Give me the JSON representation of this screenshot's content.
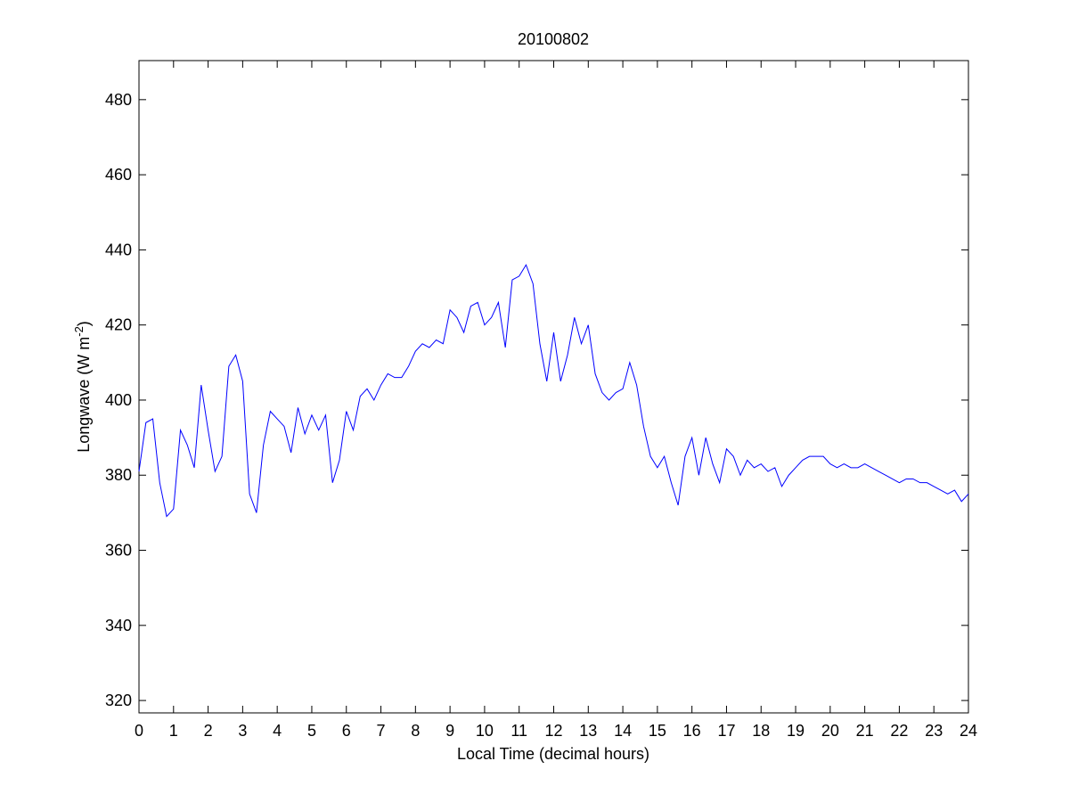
{
  "chart_data": {
    "type": "line",
    "title": "20100802",
    "x_label": "Local Time (decimal hours)",
    "y_label": [
      "Longwave (W m",
      "-2",
      ")"
    ],
    "x": [
      0,
      0.2,
      0.4,
      0.6,
      0.8,
      1,
      1.2,
      1.4,
      1.6,
      1.8,
      2,
      2.2,
      2.4,
      2.6,
      2.8,
      3,
      3.2,
      3.4,
      3.6,
      3.8,
      4,
      4.2,
      4.4,
      4.6,
      4.8,
      5,
      5.2,
      5.4,
      5.6,
      5.8,
      6,
      6.2,
      6.4,
      6.6,
      6.8,
      7,
      7.2,
      7.4,
      7.6,
      7.8,
      8,
      8.2,
      8.4,
      8.6,
      8.8,
      9,
      9.2,
      9.4,
      9.6,
      9.8,
      10,
      10.2,
      10.4,
      10.6,
      10.8,
      11,
      11.2,
      11.4,
      11.6,
      11.8,
      12,
      12.2,
      12.4,
      12.6,
      12.8,
      13,
      13.2,
      13.4,
      13.6,
      13.8,
      14,
      14.2,
      14.4,
      14.6,
      14.8,
      15,
      15.2,
      15.4,
      15.6,
      15.8,
      16,
      16.2,
      16.4,
      16.6,
      16.8,
      17,
      17.2,
      17.4,
      17.6,
      17.8,
      18,
      18.2,
      18.4,
      18.6,
      18.8,
      19,
      19.2,
      19.4,
      19.6,
      19.8,
      20,
      20.2,
      20.4,
      20.6,
      20.8,
      21,
      21.2,
      21.4,
      21.6,
      21.8,
      22,
      22.2,
      22.4,
      22.6,
      22.8,
      23,
      23.2,
      23.4,
      23.6,
      23.8,
      24
    ],
    "series": [
      {
        "color": "#0000ff",
        "values": [
          381,
          394,
          395,
          378,
          369,
          371,
          392,
          388,
          382,
          404,
          392,
          381,
          385,
          409,
          412,
          405,
          375,
          370,
          388,
          397,
          395,
          393,
          386,
          398,
          391,
          396,
          392,
          396,
          378,
          384,
          397,
          392,
          401,
          403,
          400,
          404,
          407,
          406,
          406,
          409,
          413,
          415,
          414,
          416,
          415,
          424,
          422,
          418,
          425,
          426,
          420,
          422,
          426,
          414,
          432,
          433,
          436,
          431,
          415,
          405,
          418,
          405,
          412,
          422,
          415,
          420,
          407,
          402,
          400,
          402,
          403,
          410,
          404,
          393,
          385,
          382,
          385,
          378,
          372,
          385,
          390,
          380,
          390,
          383,
          378,
          387,
          385,
          380,
          384,
          382,
          383,
          381,
          382,
          377,
          380,
          382,
          384,
          385,
          385,
          385,
          383,
          382,
          383,
          382,
          382,
          383,
          382,
          381,
          380,
          379,
          378,
          379,
          379,
          378,
          378,
          377,
          376,
          375,
          376,
          373,
          375
        ]
      }
    ],
    "xlim": [
      0,
      24
    ],
    "xticks": [
      0,
      1,
      2,
      3,
      4,
      5,
      6,
      7,
      8,
      9,
      10,
      11,
      12,
      13,
      14,
      15,
      16,
      17,
      18,
      19,
      20,
      21,
      22,
      23,
      24
    ],
    "ylim": [
      316.7,
      490.4
    ],
    "yticks": [
      320,
      340,
      360,
      380,
      400,
      420,
      440,
      460,
      480
    ]
  }
}
